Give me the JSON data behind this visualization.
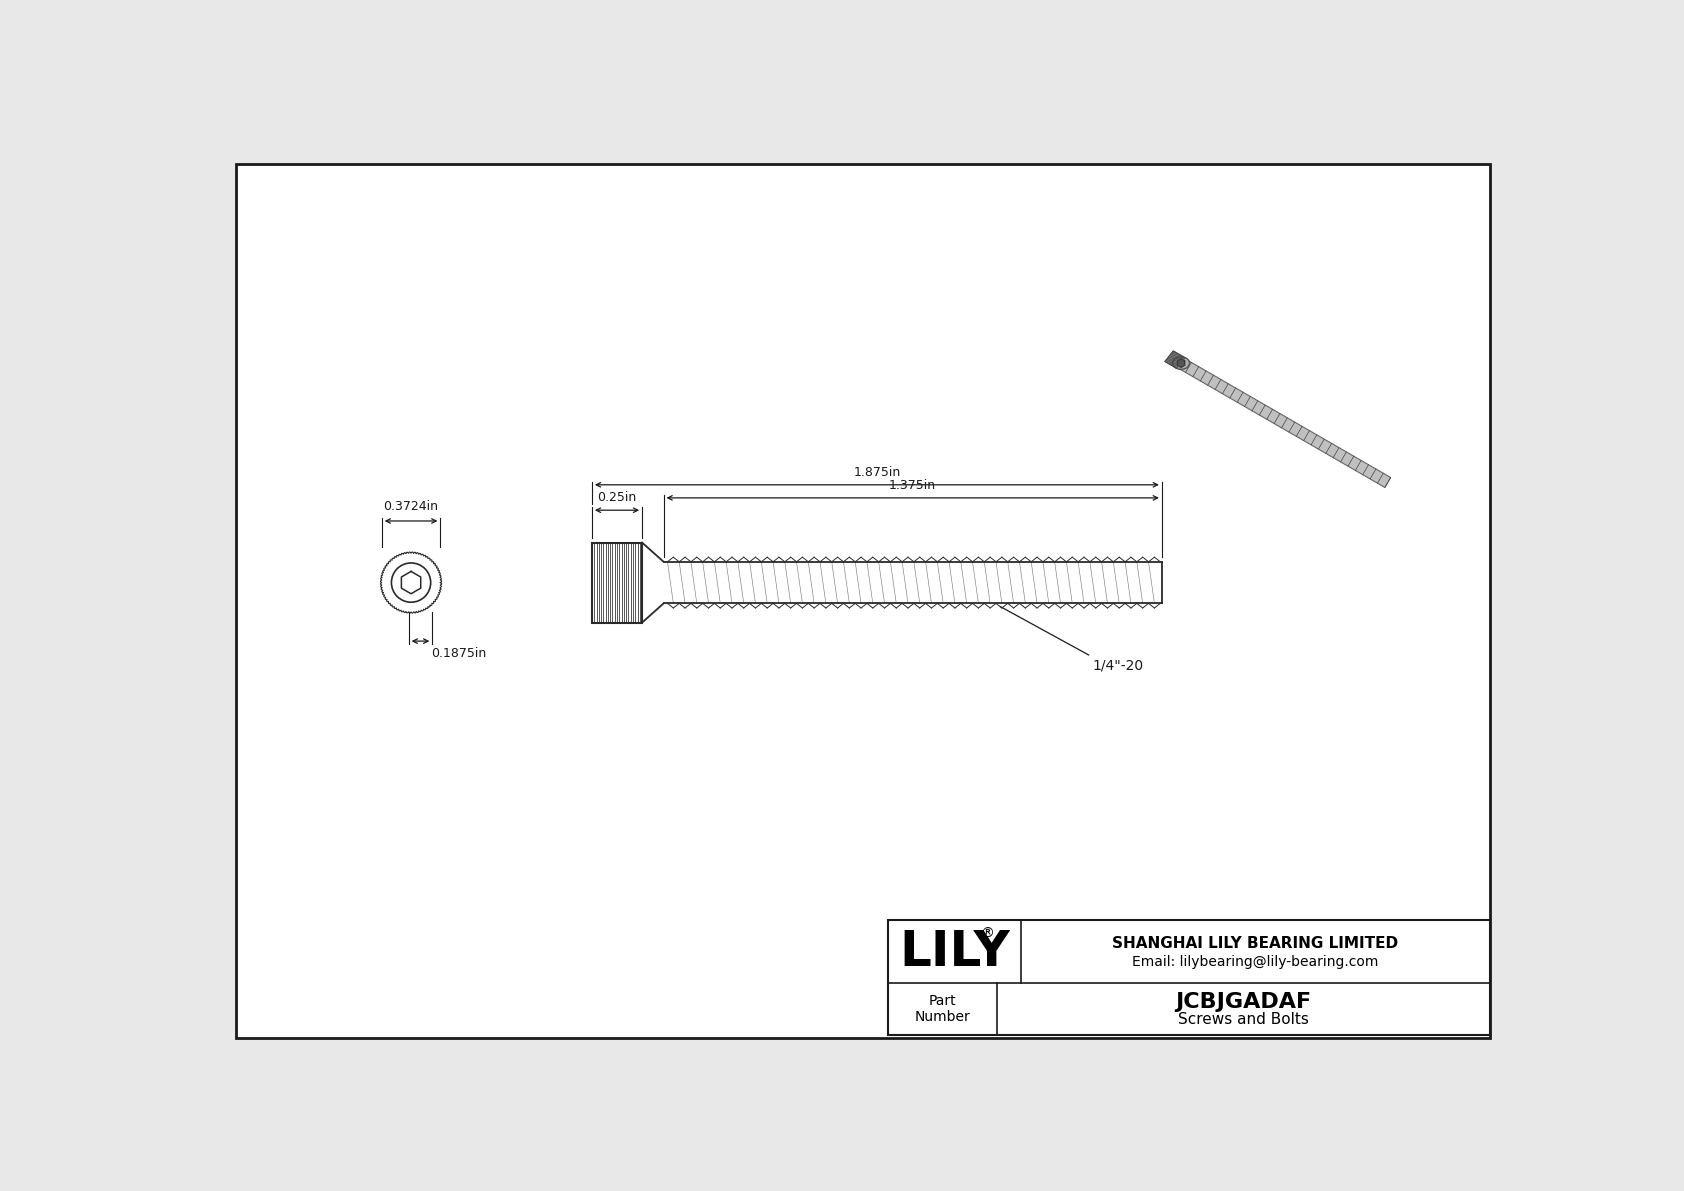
{
  "bg_color": "#e8e8e8",
  "page_bg": "#ffffff",
  "border_color": "#1a1a1a",
  "line_color": "#2a2a2a",
  "dim_color": "#1a1a1a",
  "title": "JCBJGADAF",
  "subtitle": "Screws and Bolts",
  "company": "SHANGHAI LILY BEARING LIMITED",
  "email": "Email: lilybearing@lily-bearing.com",
  "part_label": "Part\nNumber",
  "logo_text": "LILY",
  "logo_reg": "®",
  "dim_head_diameter": "0.3724in",
  "dim_head_height": "0.1875in",
  "dim_total_length": "1.875in",
  "dim_head_width": "0.25in",
  "dim_thread_length": "1.375in",
  "dim_thread_label": "1/4\"-20",
  "font_size_dim": 9,
  "font_size_logo": 36,
  "font_size_title": 16,
  "font_size_company": 11,
  "font_size_part": 10,
  "font_size_logo_reg": 10
}
